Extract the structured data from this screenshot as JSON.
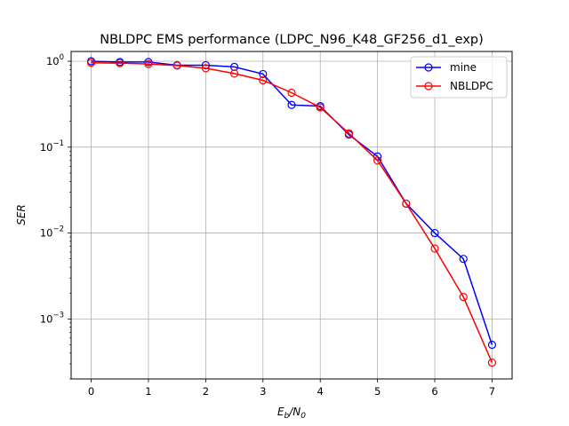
{
  "chart_data": {
    "type": "line",
    "title": "NBLDPC EMS performance (LDPC_N96_K48_GF256_d1_exp)",
    "xlabel": "E_b/N_0",
    "ylabel": "SER",
    "xlim": [
      -0.35,
      7.35
    ],
    "ylim": [
      0.0002,
      1.3
    ],
    "yscale": "log",
    "grid": true,
    "legend_position": "top-right",
    "x_ticks": [
      0,
      1,
      2,
      3,
      4,
      5,
      6,
      7
    ],
    "y_ticks": [
      0.001,
      0.01,
      0.1,
      1
    ],
    "series": [
      {
        "name": "mine",
        "color": "#0000ff",
        "marker": "open-circle",
        "x": [
          0,
          0.5,
          1,
          1.5,
          2,
          2.5,
          3,
          3.5,
          4,
          4.5,
          5,
          5.5,
          6,
          6.5,
          7
        ],
        "values": [
          1.0,
          0.98,
          0.98,
          0.9,
          0.9,
          0.86,
          0.71,
          0.31,
          0.3,
          0.14,
          0.078,
          0.022,
          0.01,
          0.005,
          0.0005
        ]
      },
      {
        "name": "NBLDPC",
        "color": "#ff0000",
        "marker": "open-circle",
        "x": [
          0,
          0.5,
          1,
          1.5,
          2,
          2.5,
          3,
          3.5,
          4,
          4.5,
          5,
          5.5,
          6,
          6.5,
          7
        ],
        "values": [
          0.96,
          0.95,
          0.93,
          0.89,
          0.83,
          0.72,
          0.6,
          0.43,
          0.29,
          0.145,
          0.07,
          0.022,
          0.0066,
          0.0018,
          0.00031
        ]
      }
    ]
  }
}
